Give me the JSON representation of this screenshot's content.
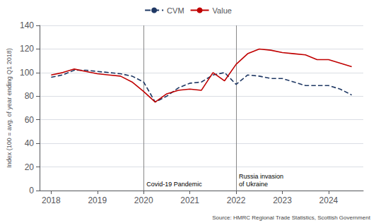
{
  "chart_data": {
    "type": "line",
    "y_label": "Index (100 = avg. of year ending Q1 2018)",
    "source": "Source: HMRC Regional Trade Statistics, Scottish Government",
    "x": [
      2018.0,
      2018.25,
      2018.5,
      2018.75,
      2019.0,
      2019.25,
      2019.5,
      2019.75,
      2020.0,
      2020.25,
      2020.5,
      2020.75,
      2021.0,
      2021.25,
      2021.5,
      2021.75,
      2022.0,
      2022.25,
      2022.5,
      2022.75,
      2023.0,
      2023.25,
      2023.5,
      2023.75,
      2024.0,
      2024.25,
      2024.5
    ],
    "series": [
      {
        "name": "CVM",
        "color": "#1f3864",
        "line_style": "dashed",
        "values": [
          96,
          98,
          102,
          102,
          101,
          100,
          99,
          97,
          92,
          75,
          80,
          87,
          91,
          92,
          98,
          100,
          90,
          98,
          97,
          95,
          95,
          92,
          89,
          89,
          89,
          86,
          81
        ]
      },
      {
        "name": "Value",
        "color": "#c00000",
        "line_style": "solid",
        "values": [
          98,
          100,
          103,
          101,
          99,
          98,
          97,
          92,
          84,
          75,
          82,
          85,
          86,
          85,
          100,
          93,
          107,
          116,
          120,
          119,
          117,
          116,
          115,
          111,
          111,
          108,
          105
        ]
      }
    ],
    "annotations": [
      {
        "x": 2020.0,
        "text": "Covid-19 Pandemic",
        "color": "#888888"
      },
      {
        "x": 2022.0,
        "text": "Russia invasion\nof Ukraine",
        "color": "#888888"
      }
    ],
    "xlim": [
      2017.75,
      2024.75
    ],
    "xticks": [
      2018,
      2019,
      2020,
      2021,
      2022,
      2023,
      2024
    ],
    "ylim": [
      0,
      140
    ],
    "yticks": [
      0,
      20,
      40,
      60,
      80,
      100,
      120,
      140
    ],
    "grid": true,
    "legend": "top",
    "marker": "none"
  }
}
